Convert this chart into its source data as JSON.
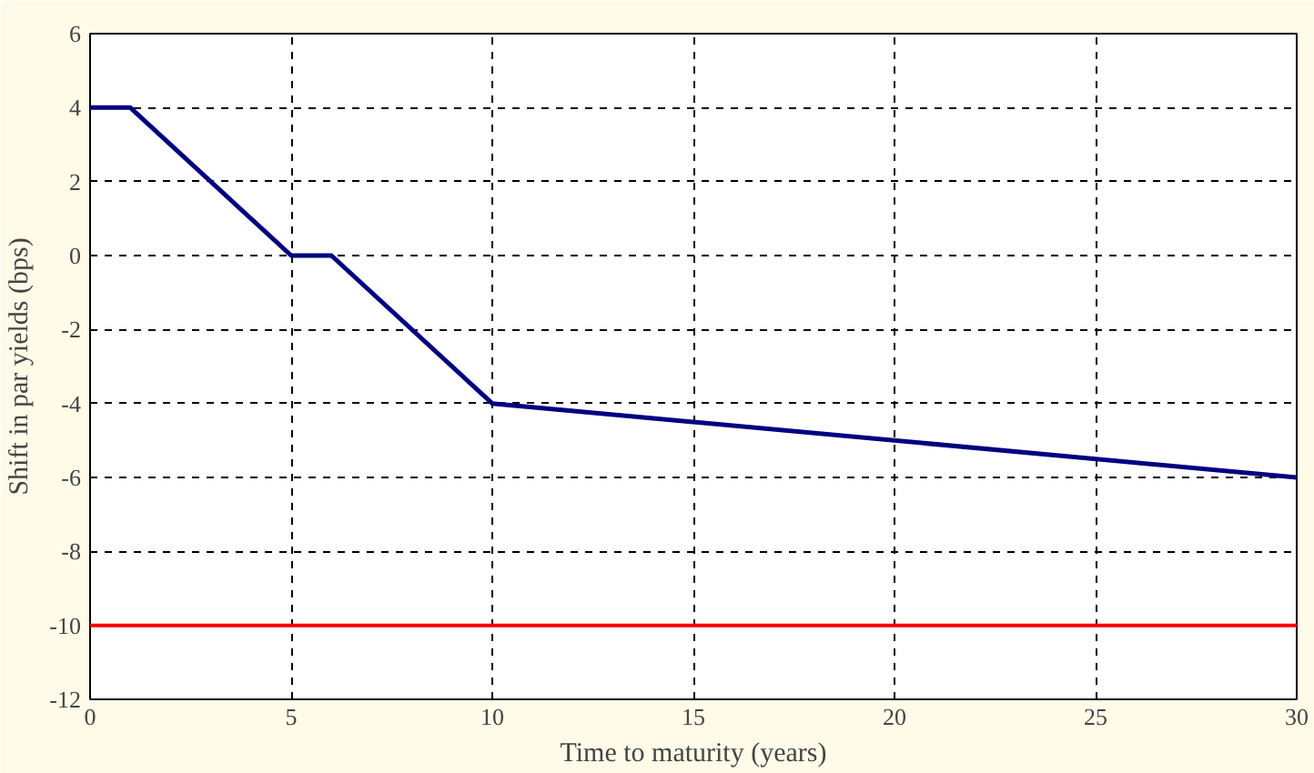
{
  "chart_data": {
    "type": "line",
    "xlabel": "Time to maturity (years)",
    "ylabel": "Shift in par yields (bps)",
    "x": [
      0,
      1,
      5,
      6,
      10,
      30
    ],
    "series": [
      {
        "color": "#000080",
        "values": [
          4,
          4,
          0,
          0,
          -4,
          -6
        ]
      }
    ],
    "xlim": [
      0,
      30
    ],
    "xticks": [
      0,
      5,
      10,
      15,
      20,
      25,
      30
    ],
    "ylim": [
      -12,
      6
    ],
    "yticks": [
      -12,
      -10,
      -8,
      -6,
      -4,
      -2,
      0,
      2,
      4,
      6
    ],
    "ref_lines": [
      {
        "axis": "y",
        "value": -10,
        "label": null,
        "color": "#ff0000",
        "line_style": "solid"
      }
    ],
    "grid": true,
    "line_style": "solid",
    "marker": "none"
  }
}
